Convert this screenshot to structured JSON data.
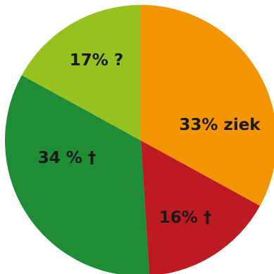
{
  "chart_data": {
    "type": "pie",
    "slices": [
      {
        "label": "33% ziek",
        "value": 33,
        "color": "#f39500"
      },
      {
        "label": "16% †",
        "value": 16,
        "color": "#be1a22"
      },
      {
        "label": "34 % †",
        "value": 34,
        "color": "#1f8c36"
      },
      {
        "label": "17% ?",
        "value": 17,
        "color": "#97c11f"
      }
    ],
    "start_angle": "12 o'clock",
    "direction": "clockwise",
    "legend": "none"
  }
}
